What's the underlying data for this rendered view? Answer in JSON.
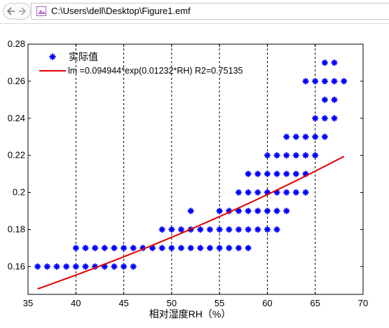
{
  "address_bar": {
    "path": "C:\\Users\\dell\\Desktop\\Figure1.emf"
  },
  "icons": {
    "back": "back-arrow-icon",
    "file": "image-file-icon"
  },
  "colors": {
    "points": "#0000ff",
    "fit_line": "#e00000"
  },
  "chart_data": {
    "type": "scatter",
    "xlabel": "相对湿度RH（%）",
    "ylabel": "",
    "xlim": [
      35,
      70
    ],
    "ylim": [
      0.145,
      0.28
    ],
    "x_ticks": [
      35,
      40,
      45,
      50,
      55,
      60,
      65,
      70
    ],
    "y_ticks": [
      0.16,
      0.18,
      0.2,
      0.22,
      0.24,
      0.26,
      0.28
    ],
    "x_tick_labels": [
      "35",
      "40",
      "45",
      "50",
      "55",
      "60",
      "65",
      "70"
    ],
    "y_tick_labels": [
      "0.16",
      "0.18",
      "0.2",
      "0.22",
      "0.24",
      "0.26",
      "0.28"
    ],
    "vertical_gridlines": [
      40,
      45,
      50,
      55,
      60,
      65
    ],
    "grid": "dashed vertical lines only",
    "legend_position": "top-left",
    "series": [
      {
        "name": "实际值",
        "kind": "points",
        "marker": "star",
        "points": [
          [
            36,
            0.16
          ],
          [
            37,
            0.16
          ],
          [
            38,
            0.16
          ],
          [
            39,
            0.16
          ],
          [
            40,
            0.16
          ],
          [
            41,
            0.16
          ],
          [
            42,
            0.16
          ],
          [
            43,
            0.16
          ],
          [
            44,
            0.16
          ],
          [
            45,
            0.16
          ],
          [
            46,
            0.16
          ],
          [
            40,
            0.17
          ],
          [
            41,
            0.17
          ],
          [
            42,
            0.17
          ],
          [
            43,
            0.17
          ],
          [
            44,
            0.17
          ],
          [
            45,
            0.17
          ],
          [
            46,
            0.17
          ],
          [
            47,
            0.17
          ],
          [
            48,
            0.17
          ],
          [
            49,
            0.17
          ],
          [
            50,
            0.17
          ],
          [
            51,
            0.17
          ],
          [
            52,
            0.17
          ],
          [
            53,
            0.17
          ],
          [
            54,
            0.17
          ],
          [
            55,
            0.17
          ],
          [
            56,
            0.17
          ],
          [
            57,
            0.17
          ],
          [
            58,
            0.17
          ],
          [
            49,
            0.18
          ],
          [
            50,
            0.18
          ],
          [
            51,
            0.18
          ],
          [
            52,
            0.18
          ],
          [
            53,
            0.18
          ],
          [
            54,
            0.18
          ],
          [
            55,
            0.18
          ],
          [
            56,
            0.18
          ],
          [
            57,
            0.18
          ],
          [
            58,
            0.18
          ],
          [
            59,
            0.18
          ],
          [
            60,
            0.18
          ],
          [
            61,
            0.18
          ],
          [
            52,
            0.19
          ],
          [
            55,
            0.19
          ],
          [
            56,
            0.19
          ],
          [
            57,
            0.19
          ],
          [
            58,
            0.19
          ],
          [
            59,
            0.19
          ],
          [
            60,
            0.19
          ],
          [
            61,
            0.19
          ],
          [
            62,
            0.19
          ],
          [
            57,
            0.2
          ],
          [
            58,
            0.2
          ],
          [
            59,
            0.2
          ],
          [
            60,
            0.2
          ],
          [
            61,
            0.2
          ],
          [
            62,
            0.2
          ],
          [
            63,
            0.2
          ],
          [
            64,
            0.2
          ],
          [
            58,
            0.21
          ],
          [
            59,
            0.21
          ],
          [
            60,
            0.21
          ],
          [
            61,
            0.21
          ],
          [
            62,
            0.21
          ],
          [
            63,
            0.21
          ],
          [
            64,
            0.21
          ],
          [
            60,
            0.22
          ],
          [
            61,
            0.22
          ],
          [
            62,
            0.22
          ],
          [
            63,
            0.22
          ],
          [
            64,
            0.22
          ],
          [
            65,
            0.22
          ],
          [
            62,
            0.23
          ],
          [
            63,
            0.23
          ],
          [
            64,
            0.23
          ],
          [
            65,
            0.23
          ],
          [
            66,
            0.23
          ],
          [
            65,
            0.24
          ],
          [
            66,
            0.24
          ],
          [
            67,
            0.24
          ],
          [
            66,
            0.25
          ],
          [
            67,
            0.25
          ],
          [
            64,
            0.26
          ],
          [
            65,
            0.26
          ],
          [
            66,
            0.26
          ],
          [
            67,
            0.26
          ],
          [
            68,
            0.26
          ],
          [
            66,
            0.27
          ],
          [
            67,
            0.27
          ]
        ]
      },
      {
        "name": "lm =0.094944*exp(0.01232*RH) R2=0.75135",
        "kind": "line",
        "function": "0.094944*exp(0.01232*RH)",
        "x_range": [
          36,
          68
        ]
      }
    ]
  }
}
